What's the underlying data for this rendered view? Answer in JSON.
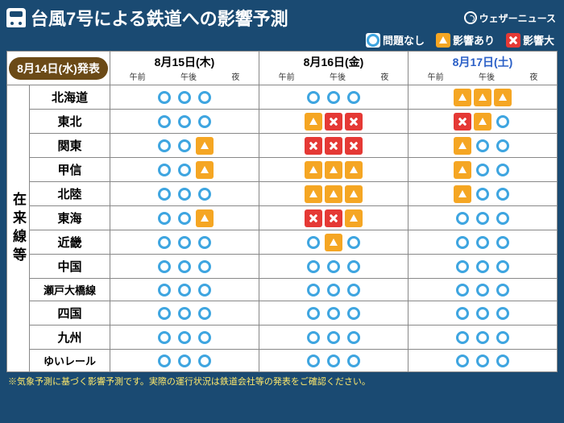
{
  "colors": {
    "background": "#1a4a72",
    "ok_border": "#3ea5e0",
    "warn_bg": "#f5a623",
    "bad_bg": "#e53935",
    "pill_bg": "#6b4a17",
    "footnote": "#ffe96b",
    "sat": "#2a5fc7"
  },
  "title": "台風7号による鉄道への影響予測",
  "brand": "ウェザーニュース",
  "legend": {
    "ok": "問題なし",
    "warn": "影響あり",
    "bad": "影響大"
  },
  "issued": "8月14日(水)発表",
  "side_label": "在来線等",
  "parts": [
    "午前",
    "午後",
    "夜"
  ],
  "days": [
    {
      "label": "8月15日(木)",
      "cls": ""
    },
    {
      "label": "8月16日(金)",
      "cls": ""
    },
    {
      "label": "8月17日(土)",
      "cls": "sat"
    }
  ],
  "regions": [
    {
      "name": "北海道",
      "v": [
        [
          "ok",
          "ok",
          "ok"
        ],
        [
          "ok",
          "ok",
          "ok"
        ],
        [
          "warn",
          "warn",
          "warn"
        ]
      ]
    },
    {
      "name": "東北",
      "v": [
        [
          "ok",
          "ok",
          "ok"
        ],
        [
          "warn",
          "bad",
          "bad"
        ],
        [
          "bad",
          "warn",
          "ok"
        ]
      ]
    },
    {
      "name": "関東",
      "v": [
        [
          "ok",
          "ok",
          "warn"
        ],
        [
          "bad",
          "bad",
          "bad"
        ],
        [
          "warn",
          "ok",
          "ok"
        ]
      ]
    },
    {
      "name": "甲信",
      "v": [
        [
          "ok",
          "ok",
          "warn"
        ],
        [
          "warn",
          "warn",
          "warn"
        ],
        [
          "warn",
          "ok",
          "ok"
        ]
      ]
    },
    {
      "name": "北陸",
      "v": [
        [
          "ok",
          "ok",
          "ok"
        ],
        [
          "warn",
          "warn",
          "warn"
        ],
        [
          "warn",
          "ok",
          "ok"
        ]
      ]
    },
    {
      "name": "東海",
      "v": [
        [
          "ok",
          "ok",
          "warn"
        ],
        [
          "bad",
          "bad",
          "warn"
        ],
        [
          "ok",
          "ok",
          "ok"
        ]
      ]
    },
    {
      "name": "近畿",
      "v": [
        [
          "ok",
          "ok",
          "ok"
        ],
        [
          "ok",
          "warn",
          "ok"
        ],
        [
          "ok",
          "ok",
          "ok"
        ]
      ]
    },
    {
      "name": "中国",
      "v": [
        [
          "ok",
          "ok",
          "ok"
        ],
        [
          "ok",
          "ok",
          "ok"
        ],
        [
          "ok",
          "ok",
          "ok"
        ]
      ]
    },
    {
      "name": "瀬戸大橋線",
      "v": [
        [
          "ok",
          "ok",
          "ok"
        ],
        [
          "ok",
          "ok",
          "ok"
        ],
        [
          "ok",
          "ok",
          "ok"
        ]
      ],
      "narrow": true
    },
    {
      "name": "四国",
      "v": [
        [
          "ok",
          "ok",
          "ok"
        ],
        [
          "ok",
          "ok",
          "ok"
        ],
        [
          "ok",
          "ok",
          "ok"
        ]
      ]
    },
    {
      "name": "九州",
      "v": [
        [
          "ok",
          "ok",
          "ok"
        ],
        [
          "ok",
          "ok",
          "ok"
        ],
        [
          "ok",
          "ok",
          "ok"
        ]
      ]
    },
    {
      "name": "ゆいレール",
      "v": [
        [
          "ok",
          "ok",
          "ok"
        ],
        [
          "ok",
          "ok",
          "ok"
        ],
        [
          "ok",
          "ok",
          "ok"
        ]
      ],
      "narrow": true
    }
  ],
  "footnote": "※気象予測に基づく影響予測です。実際の運行状況は鉄道会社等の発表をご確認ください。"
}
